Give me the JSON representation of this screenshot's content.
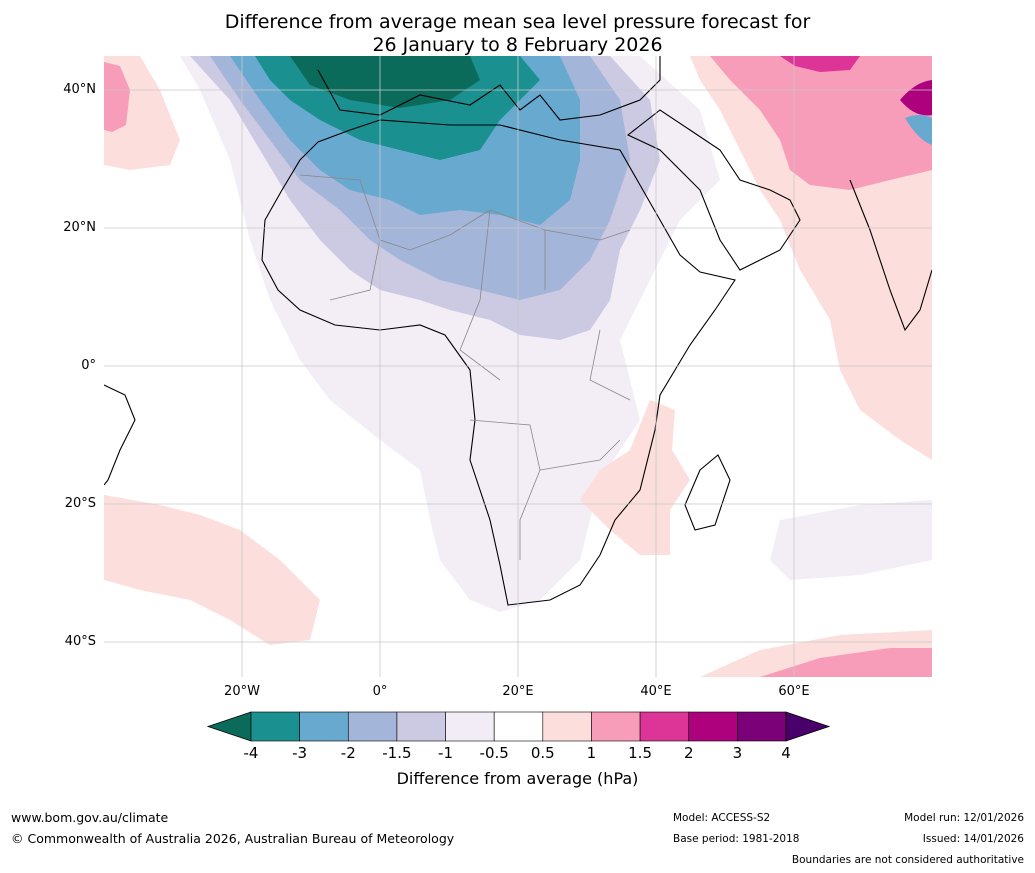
{
  "title": {
    "line1": "Difference from average mean sea level pressure forecast for",
    "line2": "26 January to 8 February 2026"
  },
  "map": {
    "latitude_labels": [
      "40°N",
      "20°N",
      "0°",
      "20°S",
      "40°S"
    ],
    "longitude_labels": [
      "20°W",
      "0°",
      "20°E",
      "40°E",
      "60°E"
    ],
    "extent": {
      "lon_min": -40,
      "lon_max": 80,
      "lat_min": -45,
      "lat_max": 45
    }
  },
  "legend": {
    "ticks": [
      "-4",
      "-3",
      "-2",
      "-1.5",
      "-1",
      "-0.5",
      "0.5",
      "1",
      "1.5",
      "2",
      "3",
      "4"
    ],
    "colors": [
      "#0b6b5a",
      "#1a9090",
      "#67a9cf",
      "#a3b5d8",
      "#ccc9e2",
      "#f1ecf5",
      "#ffffff",
      "#fcdedc",
      "#f79dba",
      "#dd3497",
      "#ae017e",
      "#7a0177",
      "#49006a"
    ],
    "label": "Difference from average (hPa)"
  },
  "footer": {
    "website": "www.bom.gov.au/climate",
    "copyright": "© Commonwealth of Australia 2026, Australian Bureau of Meteorology",
    "model": "Model: ACCESS-S2",
    "base_period": "Base period: 1981-2018",
    "model_run": "Model run: 12/01/2026",
    "issued": "Issued: 14/01/2026",
    "disclaimer": "Boundaries are not considered authoritative"
  }
}
